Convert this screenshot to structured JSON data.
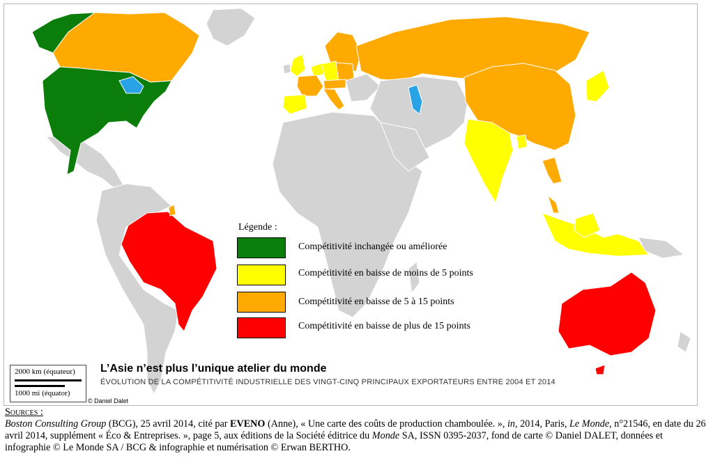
{
  "map": {
    "title": "L’Asie n’est plus l’unique atelier du monde",
    "subtitle": "ÉVOLUTION DE LA COMPÉTITIVITÉ INDUSTRIELLE DES VINGT-CINQ PRINCIPAUX EXPORTATEURS ENTRE 2004 ET 2014",
    "credit": "© Daniel Dalet",
    "scale": {
      "km": "2000 km (équateur)",
      "mi": "1000 mi (équator)"
    },
    "colors": {
      "unchanged_or_improved": "#0a7d0a",
      "down_less_5": "#ffff00",
      "down_5_15": "#ffaa00",
      "down_more_15": "#ff0000",
      "other": "#d3d3d3",
      "water": "#29a3e6"
    },
    "legend": {
      "title": "Légende :",
      "items": [
        {
          "label": "Compétitivité inchangée ou améliorée",
          "color": "#0a7d0a"
        },
        {
          "label": "Compétitivité en baisse de moins  de 5 points",
          "color": "#ffff00"
        },
        {
          "label": "Compétitivité en baisse de 5 à 15 points",
          "color": "#ffaa00"
        },
        {
          "label": "Compétitivité en baisse de plus de 15 points",
          "color": "#ff0000"
        }
      ]
    }
  },
  "sources": {
    "heading": "Sources :",
    "publisher": "Boston Consulting Group",
    "text1": " (BCG), 25 avril 2014, cité par ",
    "author": "EVENO",
    "text2": " (Anne), « Une carte des coûts de production chamboulée. », ",
    "in": "in",
    "text3": ", 2014, Paris, ",
    "paper": "Le Monde",
    "text4": ", n°21546, en date du 26 avril 2014, supplément « Éco & Entreprises. », page 5, aux éditions de la Société éditrice du ",
    "paper2": "Monde",
    "text5": " SA, ISSN 0395-2037, fond de carte © Daniel DALET, données et infographie © Le Monde SA / BCG & infographie et numérisation © Erwan BERTHO."
  }
}
